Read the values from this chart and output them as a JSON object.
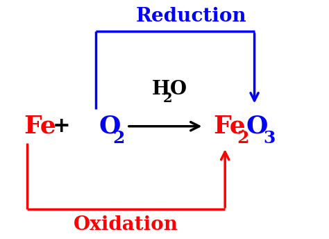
{
  "background_color": "#ffffff",
  "fig_width": 4.74,
  "fig_height": 3.44,
  "dpi": 100,
  "fe_label": "Fe",
  "fe_color": "#ff0000",
  "fe_fontsize": 26,
  "plus_label": "+",
  "plus_color": "#000000",
  "plus_fontsize": 22,
  "o2_fontsize": 26,
  "o2_sub_fontsize": 18,
  "o2_color": "#0000ff",
  "h2o_fontsize": 20,
  "h2o_sub_fontsize": 14,
  "h2o_color": "#000000",
  "fe2o3_fontsize": 26,
  "fe2o3_sub_fontsize": 18,
  "fe_color2": "#ff0000",
  "o3_color": "#0000ff",
  "reaction_arrow_color": "#000000",
  "reduction_label": "Reduction",
  "reduction_color": "#0000ff",
  "reduction_fontsize": 20,
  "oxidation_label": "Oxidation",
  "oxidation_color": "#ff0000",
  "oxidation_fontsize": 20,
  "blue_lw": 2.5,
  "red_lw": 2.5,
  "black_lw": 2.5,
  "xlim": [
    0,
    10
  ],
  "ylim": [
    0,
    7
  ]
}
